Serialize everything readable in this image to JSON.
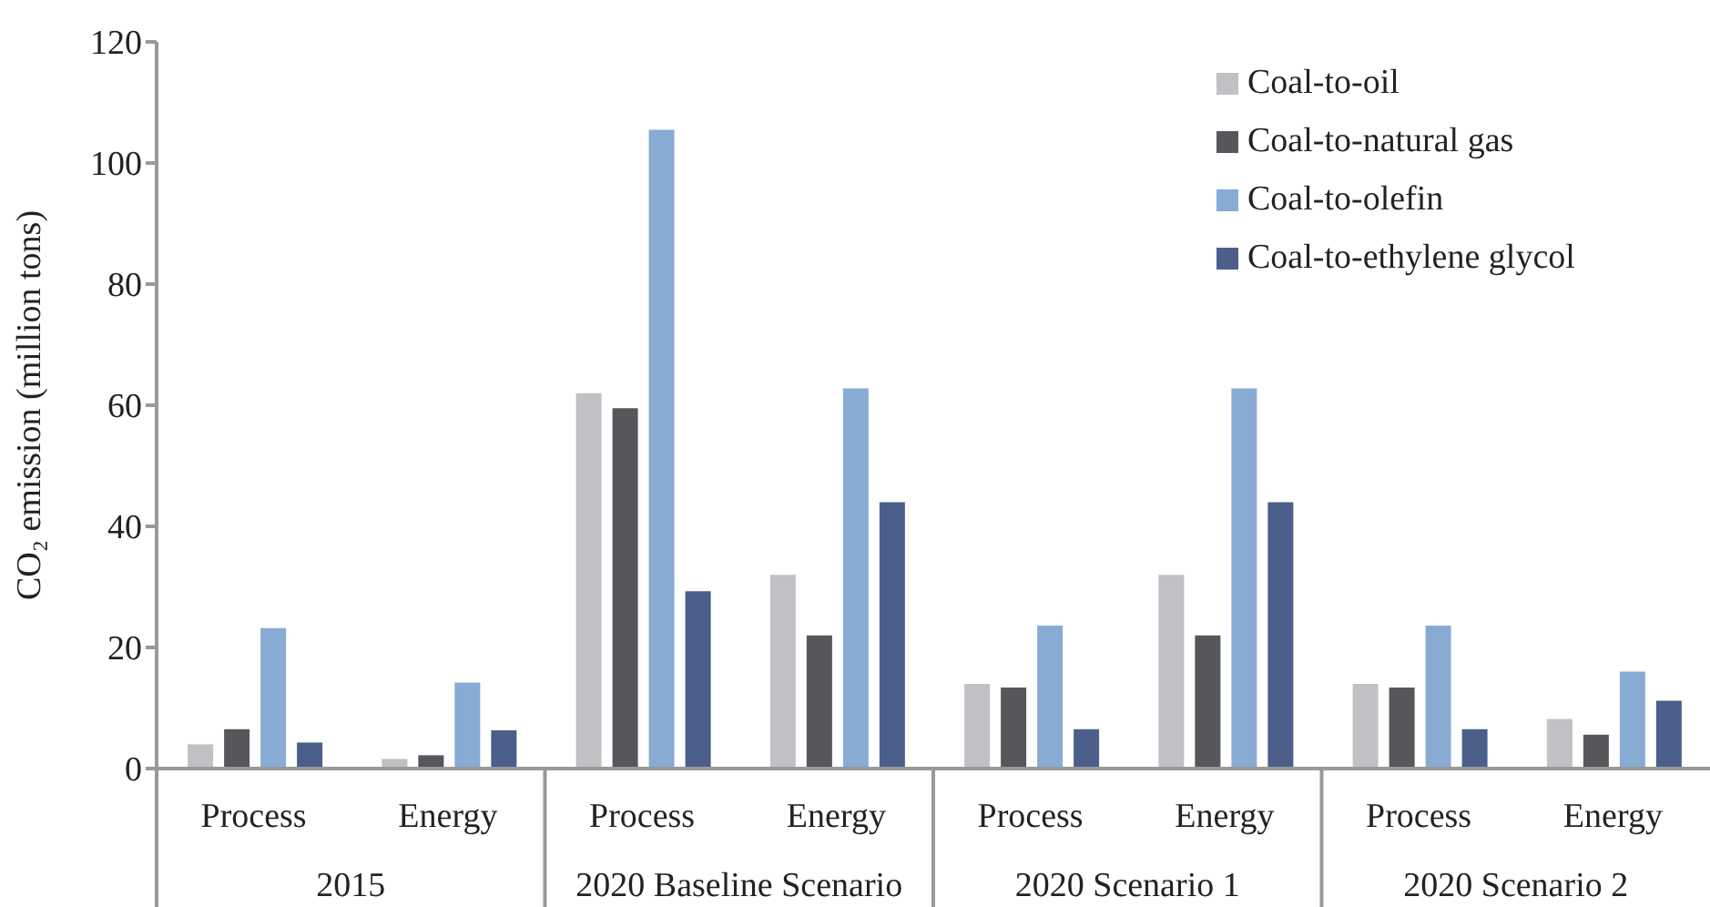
{
  "chart_data": {
    "type": "bar",
    "ylabel": "CO₂ emission (million tons)",
    "categories": [
      "Process",
      "Energy",
      "Process",
      "Energy",
      "Process",
      "Energy",
      "Process",
      "Energy"
    ],
    "annotations": [
      "2015",
      "2020 Baseline Scenario",
      "2020 Scenario 1",
      "2020 Scenario 2"
    ],
    "series": [
      {
        "name": "Coal-to-oil",
        "color": "#c0c1c4",
        "values": [
          4,
          1.6,
          62,
          32,
          14,
          32,
          14,
          8.2
        ]
      },
      {
        "name": "Coal-to-natural gas",
        "color": "#55575b",
        "values": [
          6.5,
          2.2,
          59.5,
          22,
          13.4,
          22,
          13.4,
          5.6
        ]
      },
      {
        "name": "Coal-to-olefin",
        "color": "#87abd3",
        "values": [
          23.2,
          14.2,
          105.5,
          62.8,
          23.6,
          62.8,
          23.6,
          16
        ]
      },
      {
        "name": "Coal-to-ethylene glycol",
        "color": "#4b5f8a",
        "values": [
          4.3,
          6.3,
          29.3,
          44,
          6.5,
          44,
          6.5,
          11.2
        ]
      }
    ],
    "ylim": [
      0,
      120
    ],
    "yticks": [
      0,
      20,
      40,
      60,
      80,
      100,
      120
    ],
    "grid": false,
    "legend": "top right"
  }
}
